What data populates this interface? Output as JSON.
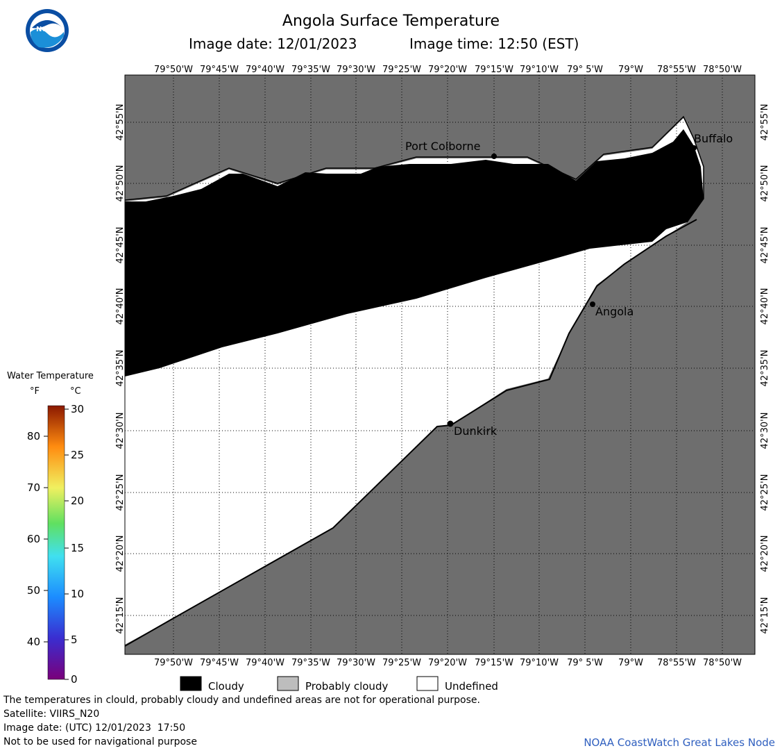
{
  "header": {
    "title": "Angola Surface Temperature",
    "image_date_label": "Image date: 12/01/2023",
    "image_time_label": "Image time: 12:50 (EST)"
  },
  "logo": {
    "name": "noaa-logo",
    "text": "NOAA"
  },
  "map": {
    "lon_labels": [
      "79°50'W",
      "79°45'W",
      "79°40'W",
      "79°35'W",
      "79°30'W",
      "79°25'W",
      "79°20'W",
      "79°15'W",
      "79°10'W",
      "79° 5'W",
      "79°W",
      "78°55'W",
      "78°50'W"
    ],
    "lat_labels": [
      "42°55'N",
      "42°50'N",
      "42°45'N",
      "42°40'N",
      "42°35'N",
      "42°30'N",
      "42°25'N",
      "42°20'N",
      "42°15'N"
    ],
    "places": [
      {
        "name": "Port Colborne"
      },
      {
        "name": "Buffalo"
      },
      {
        "name": "Angola"
      },
      {
        "name": "Dunkirk"
      }
    ],
    "colors": {
      "land": "#6e6e6e",
      "cloudy": "#000000",
      "undefined": "#ffffff",
      "probably_cloudy": "#bdbdbd"
    }
  },
  "colorbar": {
    "title": "Water Temperature",
    "unit_f": "°F",
    "unit_c": "°C",
    "f_ticks": [
      "80",
      "70",
      "60",
      "50",
      "40"
    ],
    "c_ticks": [
      "30",
      "25",
      "20",
      "15",
      "10",
      "5",
      "0"
    ]
  },
  "legend": {
    "cloudy": "Cloudy",
    "probably_cloudy": "Probably cloudy",
    "undefined": "Undefined"
  },
  "footer": {
    "note": "The temperatures in clould, probably cloudy and undefined areas are not for operational purpose.",
    "satellite": "Satellite: VIIRS_N20",
    "utc_date": "Image date: (UTC) 12/01/2023  17:50",
    "nav_note": "Not to be used for navigational purpose",
    "credit": "NOAA CoastWatch Great Lakes Node"
  }
}
